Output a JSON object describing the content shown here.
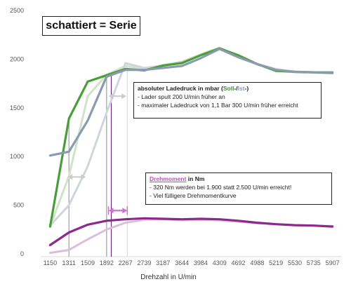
{
  "chart_data": {
    "type": "line",
    "categories": [
      "1150",
      "1311",
      "1509",
      "1892",
      "2267",
      "2739",
      "3187",
      "3644",
      "3984",
      "4309",
      "4692",
      "4988",
      "5219",
      "5530",
      "5735",
      "5907"
    ],
    "ylim": [
      0,
      2500
    ],
    "yticks": [
      "0",
      "500",
      "1000",
      "1500",
      "2000",
      "2500"
    ],
    "xlabel": "Drehzahl in U/min",
    "grid": false,
    "title_box": "schattiert = Serie",
    "series": [
      {
        "key": "soll_serie",
        "color": "#d2e2c8",
        "values": [
          280,
          800,
          1620,
          1840,
          1930,
          1900,
          1940,
          1975,
          2050,
          2120,
          2030,
          1950,
          1900,
          1870,
          1865,
          1860
        ]
      },
      {
        "key": "ist_serie",
        "color": "#cfd5dd",
        "values": [
          290,
          500,
          900,
          1450,
          1960,
          1910,
          1935,
          1970,
          2040,
          2110,
          2020,
          1945,
          1895,
          1865,
          1860,
          1855
        ]
      },
      {
        "key": "soll",
        "color": "#4a9d3b",
        "values": [
          280,
          1390,
          1770,
          1835,
          1900,
          1885,
          1935,
          1960,
          2040,
          2110,
          2040,
          1950,
          1880,
          1870,
          1865,
          1860
        ]
      },
      {
        "key": "ist",
        "color": "#8a9bb0",
        "values": [
          1010,
          1050,
          1370,
          1820,
          1890,
          1890,
          1910,
          1930,
          2010,
          2105,
          2020,
          1950,
          1890,
          1870,
          1865,
          1865
        ]
      },
      {
        "key": "drehmoment_serie",
        "color": "#dcbedc",
        "values": [
          10,
          40,
          150,
          250,
          320,
          350,
          355,
          345,
          350,
          345,
          330,
          315,
          305,
          295,
          290,
          285
        ]
      },
      {
        "key": "drehmoment",
        "color": "#8b2a8b",
        "values": [
          90,
          220,
          300,
          340,
          355,
          365,
          360,
          355,
          360,
          355,
          340,
          320,
          305,
          295,
          290,
          280
        ]
      }
    ],
    "annotations": [
      {
        "heading_prefix": "absoluter Ladedruck in mbar (",
        "heading_soll": "Soll",
        "heading_sep": "-/",
        "heading_ist": "Ist",
        "heading_suffix": "-)",
        "lines": [
          "- Lader spult 200 U/min früher an",
          "- maximaler Ladedruck von 1,1 Bar 300 U/min früher erreicht"
        ]
      },
      {
        "heading_moment": "Drehmoment",
        "heading_suffix": " in Nm",
        "lines": [
          "- 320 Nm werden bei 1.900 statt 2.500 U/min erreicht!",
          "- Viel fülligere Drehmomentkurve"
        ]
      }
    ],
    "colors": {
      "soll_text": "#3c8c32",
      "ist_text": "#8a9bb0",
      "moment_text": "#c050c0",
      "arrow_grey": "#cccccc",
      "arrow_magenta": "#d070d0",
      "vline_grey": "#9aa0a8",
      "vline_purple": "#6b2a7b"
    }
  }
}
